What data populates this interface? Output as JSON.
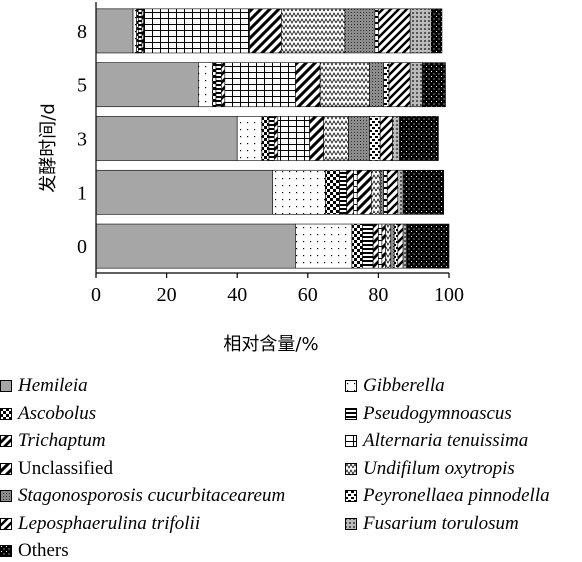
{
  "chart_data": {
    "type": "bar",
    "orientation": "horizontal",
    "stacked": true,
    "title": "",
    "xlabel": "相对含量/%",
    "ylabel": "发酵时间/d",
    "xlim": [
      0,
      100
    ],
    "x_ticks": [
      "0",
      "20",
      "40",
      "60",
      "80",
      "100"
    ],
    "categories": [
      "8",
      "5",
      "3",
      "1",
      "0"
    ],
    "legend_position": "bottom",
    "series": [
      {
        "name": "Hemileia",
        "italic": true,
        "pattern": "solid-gray",
        "values": [
          10.5,
          29,
          40,
          50,
          56.5
        ]
      },
      {
        "name": "Gibberella",
        "italic": true,
        "pattern": "sparse-dots",
        "values": [
          1,
          4,
          7,
          15,
          16
        ]
      },
      {
        "name": "Ascobolus",
        "italic": true,
        "pattern": "checker",
        "values": [
          0.5,
          1,
          2,
          4,
          3
        ]
      },
      {
        "name": "Pseudogymnoascus",
        "italic": true,
        "pattern": "horizontal-stripes",
        "values": [
          1,
          1.5,
          1.5,
          2,
          3
        ]
      },
      {
        "name": "Trichaptum",
        "italic": true,
        "pattern": "diagonal-bold",
        "values": [
          0.5,
          1,
          1,
          2,
          1.5
        ]
      },
      {
        "name": "Alternaria tenuissima",
        "italic": true,
        "pattern": "grid",
        "values": [
          30,
          20,
          9,
          1,
          1
        ]
      },
      {
        "name": "Unclassified",
        "italic": false,
        "pattern": "diagonal-bold-2",
        "values": [
          9,
          7,
          4,
          4,
          1
        ]
      },
      {
        "name": "Undifilum oxytropis",
        "italic": true,
        "pattern": "zigzag",
        "values": [
          18,
          14,
          7,
          2.5,
          1.5
        ]
      },
      {
        "name": "Stagonosporosis cucurbitaceareum",
        "italic": true,
        "pattern": "dense-dots",
        "values": [
          8.5,
          4,
          6,
          1,
          1
        ]
      },
      {
        "name": "Peyronellaea pinnodella",
        "italic": true,
        "pattern": "dashes",
        "values": [
          1,
          1.5,
          3,
          1,
          1
        ]
      },
      {
        "name": "Leposphaerulina trifolii",
        "italic": true,
        "pattern": "diagonal-bold-3",
        "values": [
          9,
          6,
          3.5,
          3,
          1.5
        ]
      },
      {
        "name": "Fusarium torulosum",
        "italic": true,
        "pattern": "grid-dots",
        "values": [
          6,
          3.5,
          2,
          1.5,
          1
        ]
      },
      {
        "name": "Others",
        "italic": false,
        "pattern": "black-dots",
        "values": [
          3,
          6.5,
          11,
          11.5,
          12
        ]
      }
    ]
  }
}
